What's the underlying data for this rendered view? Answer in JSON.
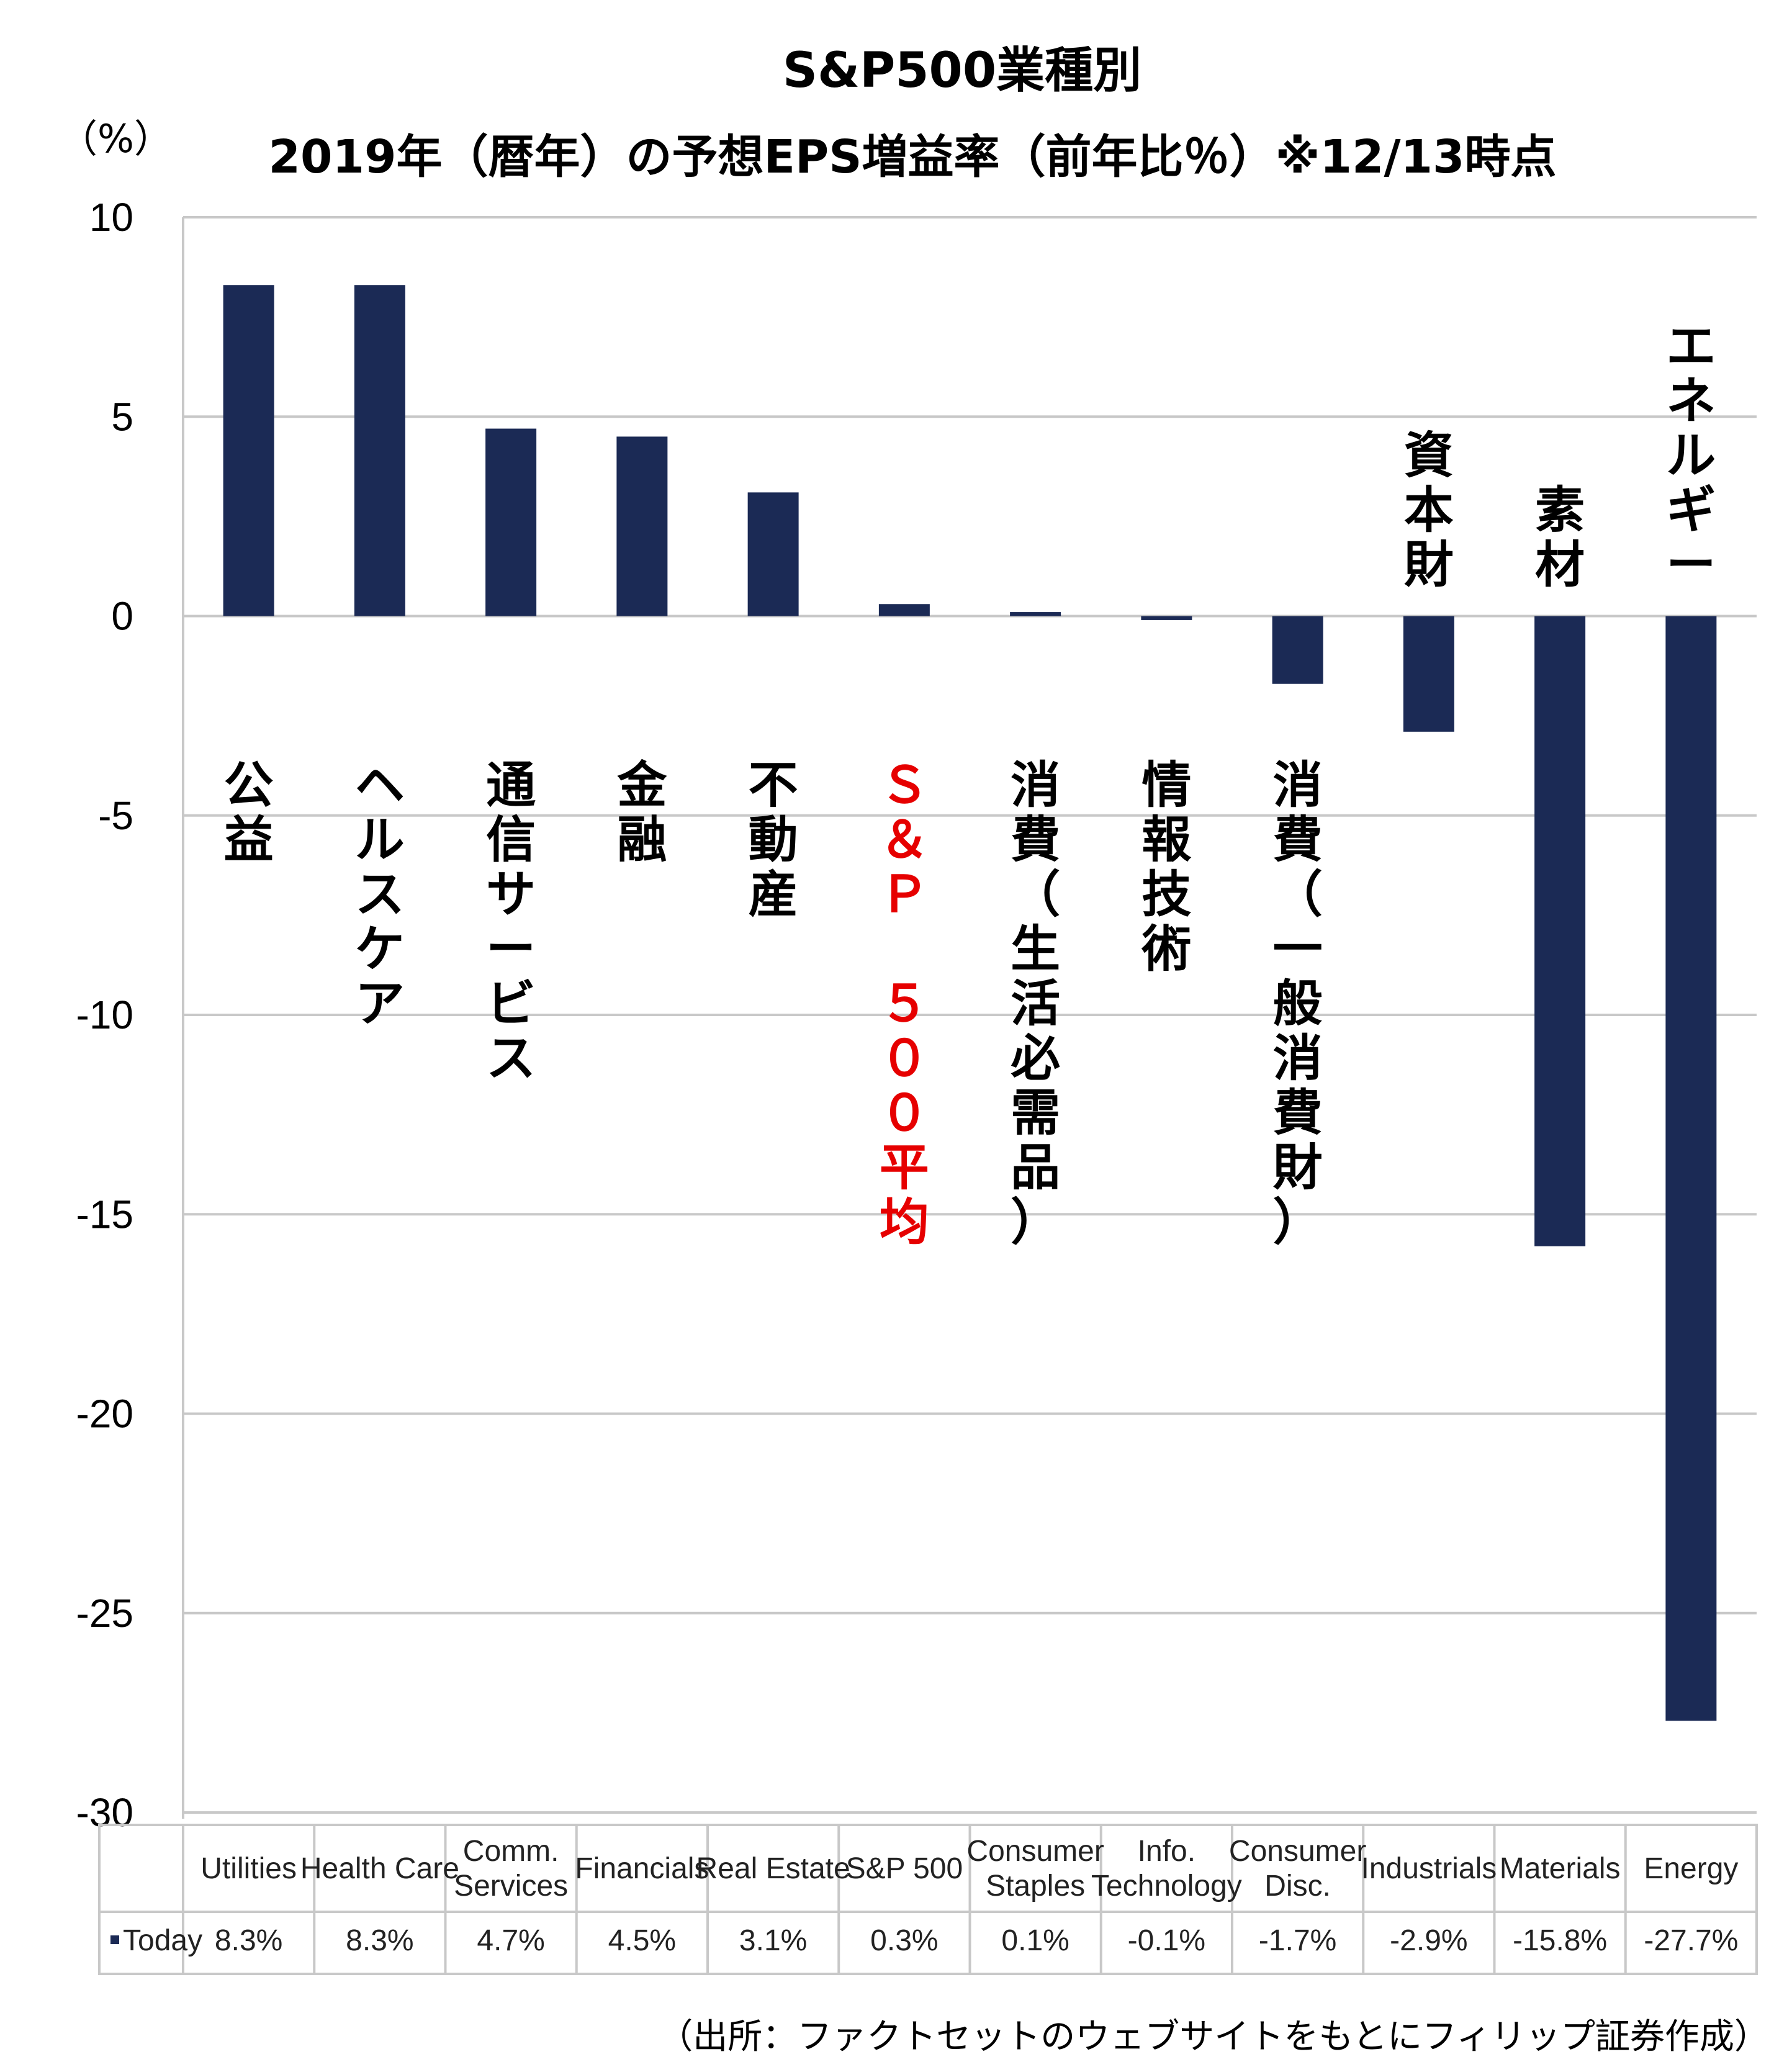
{
  "title_line1": "S&P500業種別",
  "title_line2": "2019年（暦年）の予想EPS増益率（前年比％）※12/13時点",
  "unit_label": "（%）",
  "source": "（出所：ファクトセットのウェブサイトをもとにフィリップ証券作成）",
  "table_row_label": "Today",
  "colors": {
    "bar": "#1b2a55",
    "highlight": "#e60000",
    "grid": "#c8c8c8",
    "text": "#000000"
  },
  "chart_data": {
    "type": "bar",
    "title": "S&P500業種別 2019年（暦年）の予想EPS増益率（前年比％）※12/13時点",
    "ylabel": "（%）",
    "ylim": [
      -30,
      10
    ],
    "yticks": [
      10,
      5,
      0,
      -5,
      -10,
      -15,
      -20,
      -25,
      -30
    ],
    "grid": true,
    "series": [
      {
        "name": "Today",
        "values": [
          8.3,
          8.3,
          4.7,
          4.5,
          3.1,
          0.3,
          0.1,
          -0.1,
          -1.7,
          -2.9,
          -15.8,
          -27.7
        ]
      }
    ],
    "categories": [
      "Utilities",
      "Health Care",
      "Comm. Services",
      "Financials",
      "Real Estate",
      "S&P 500",
      "Consumer Staples",
      "Info. Technology",
      "Consumer Disc.",
      "Industrials",
      "Materials",
      "Energy"
    ],
    "category_lines": [
      [
        "Utilities"
      ],
      [
        "Health Care"
      ],
      [
        "Comm.",
        "Services"
      ],
      [
        "Financials"
      ],
      [
        "Real Estate"
      ],
      [
        "S&P 500"
      ],
      [
        "Consumer",
        "Staples"
      ],
      [
        "Info.",
        "Technology"
      ],
      [
        "Consumer",
        "Disc."
      ],
      [
        "Industrials"
      ],
      [
        "Materials"
      ],
      [
        "Energy"
      ]
    ],
    "value_labels": [
      "8.3%",
      "8.3%",
      "4.7%",
      "4.5%",
      "3.1%",
      "0.3%",
      "0.1%",
      "-0.1%",
      "-1.7%",
      "-2.9%",
      "-15.8%",
      "-27.7%"
    ],
    "japanese_labels": [
      "公益",
      "ヘルスケア",
      "通信サービス",
      "金融",
      "不動産",
      "Ｓ＆Ｐ　５００平均",
      "消費（生活必需品）",
      "情報技術",
      "消費（一般消費財）",
      "資本財",
      "素材",
      "エネルギー"
    ],
    "highlight_index": 5
  }
}
